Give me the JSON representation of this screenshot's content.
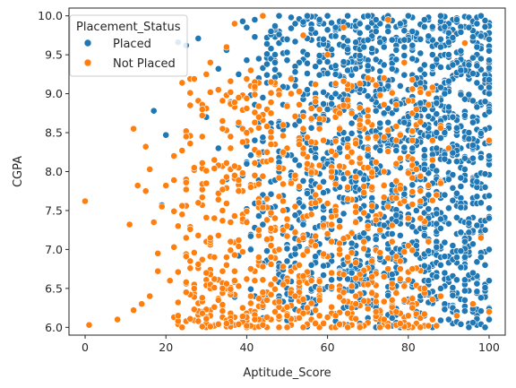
{
  "chart_data": {
    "type": "scatter",
    "xlabel": "Aptitude_Score",
    "ylabel": "CGPA",
    "xlim": [
      -4,
      104
    ],
    "ylim": [
      5.9,
      10.1
    ],
    "xticks": [
      "0",
      "20",
      "40",
      "60",
      "80",
      "100"
    ],
    "xtick_values": [
      0,
      20,
      40,
      60,
      80,
      100
    ],
    "yticks": [
      "6.0",
      "6.5",
      "7.0",
      "7.5",
      "8.0",
      "8.5",
      "9.0",
      "9.5",
      "10.0"
    ],
    "ytick_values": [
      6.0,
      6.5,
      7.0,
      7.5,
      8.0,
      8.5,
      9.0,
      9.5,
      10.0
    ],
    "grid": false,
    "legend": {
      "title": "Placement_Status",
      "placement": "top-left"
    },
    "series": [
      {
        "name": "Placed",
        "color": "#1f77b4",
        "density_note": "dense cloud, mostly Aptitude 45-100, CGPA 6.5-10",
        "points": [
          [
            17,
            8.78
          ],
          [
            19,
            7.57
          ],
          [
            20,
            8.47
          ],
          [
            23,
            9.66
          ],
          [
            25,
            9.62
          ],
          [
            28,
            9.71
          ],
          [
            33,
            9.32
          ],
          [
            35,
            9.56
          ],
          [
            38,
            9.25
          ],
          [
            40,
            9.85
          ],
          [
            42,
            9.95
          ],
          [
            44,
            10.0
          ],
          [
            46,
            9.8
          ],
          [
            48,
            10.0
          ],
          [
            50,
            9.7
          ],
          [
            52,
            9.9
          ],
          [
            55,
            10.0
          ],
          [
            58,
            9.95
          ],
          [
            60,
            10.0
          ],
          [
            62,
            9.85
          ],
          [
            65,
            10.0
          ],
          [
            68,
            9.9
          ],
          [
            70,
            10.0
          ],
          [
            72,
            9.95
          ],
          [
            75,
            10.0
          ],
          [
            78,
            9.9
          ],
          [
            80,
            10.0
          ],
          [
            84,
            9.95
          ],
          [
            88,
            10.0
          ],
          [
            92,
            9.95
          ],
          [
            95,
            9.85
          ],
          [
            98,
            10.0
          ],
          [
            100,
            9.7
          ],
          [
            30,
            8.7
          ],
          [
            33,
            8.3
          ],
          [
            35,
            7.9
          ],
          [
            36,
            8.9
          ],
          [
            38,
            8.6
          ],
          [
            39,
            7.4
          ],
          [
            40,
            8.1
          ],
          [
            41,
            7.0
          ],
          [
            42,
            8.4
          ],
          [
            43,
            9.2
          ],
          [
            44,
            7.7
          ],
          [
            45,
            8.8
          ],
          [
            46,
            6.9
          ],
          [
            47,
            9.4
          ],
          [
            48,
            8.0
          ],
          [
            49,
            7.2
          ],
          [
            50,
            8.6
          ],
          [
            51,
            6.4
          ],
          [
            52,
            9.1
          ],
          [
            53,
            7.6
          ],
          [
            54,
            8.3
          ],
          [
            55,
            9.5
          ],
          [
            56,
            6.8
          ],
          [
            57,
            8.9
          ],
          [
            58,
            7.3
          ],
          [
            59,
            9.7
          ],
          [
            60,
            8.1
          ],
          [
            61,
            6.5
          ],
          [
            62,
            9.0
          ],
          [
            63,
            7.8
          ],
          [
            64,
            8.5
          ],
          [
            65,
            9.3
          ],
          [
            66,
            7.0
          ],
          [
            67,
            8.7
          ],
          [
            68,
            6.3
          ],
          [
            69,
            9.6
          ],
          [
            70,
            8.2
          ],
          [
            71,
            7.5
          ],
          [
            72,
            9.8
          ],
          [
            73,
            6.9
          ],
          [
            74,
            8.4
          ],
          [
            75,
            9.1
          ],
          [
            76,
            7.2
          ],
          [
            77,
            8.8
          ],
          [
            78,
            6.6
          ],
          [
            79,
            9.4
          ],
          [
            80,
            8.0
          ],
          [
            81,
            7.7
          ],
          [
            82,
            9.2
          ],
          [
            83,
            6.4
          ],
          [
            84,
            8.6
          ],
          [
            85,
            7.4
          ],
          [
            86,
            9.5
          ],
          [
            87,
            8.3
          ],
          [
            88,
            6.8
          ],
          [
            89,
            9.0
          ],
          [
            90,
            7.9
          ],
          [
            91,
            8.7
          ],
          [
            92,
            6.2
          ],
          [
            93,
            9.3
          ],
          [
            94,
            7.1
          ],
          [
            95,
            8.5
          ],
          [
            96,
            6.7
          ],
          [
            97,
            9.6
          ],
          [
            98,
            7.6
          ],
          [
            99,
            8.9
          ],
          [
            100,
            8.2
          ],
          [
            100,
            7.4
          ],
          [
            100,
            6.6
          ],
          [
            100,
            9.0
          ],
          [
            100,
            6.1
          ],
          [
            99,
            6.0
          ],
          [
            95,
            6.0
          ],
          [
            90,
            6.1
          ],
          [
            86,
            6.0
          ],
          [
            82,
            6.2
          ],
          [
            78,
            6.0
          ],
          [
            74,
            6.1
          ]
        ]
      },
      {
        "name": "Not Placed",
        "color": "#ff7f0e",
        "density_note": "mostly Aptitude 25-80, CGPA 6.0-8.5",
        "points": [
          [
            0,
            7.62
          ],
          [
            1,
            6.03
          ],
          [
            8,
            6.1
          ],
          [
            11,
            7.32
          ],
          [
            12,
            8.55
          ],
          [
            12,
            6.22
          ],
          [
            13,
            7.82
          ],
          [
            14,
            6.3
          ],
          [
            15,
            8.32
          ],
          [
            15,
            7.75
          ],
          [
            16,
            6.4
          ],
          [
            16,
            8.03
          ],
          [
            17,
            7.35
          ],
          [
            18,
            6.72
          ],
          [
            18,
            6.95
          ],
          [
            19,
            7.55
          ],
          [
            20,
            7.82
          ],
          [
            21,
            6.6
          ],
          [
            22,
            7.03
          ],
          [
            22,
            8.2
          ],
          [
            23,
            6.32
          ],
          [
            24,
            7.45
          ],
          [
            24,
            6.0
          ],
          [
            25,
            8.45
          ],
          [
            25,
            7.15
          ],
          [
            26,
            6.85
          ],
          [
            27,
            8.05
          ],
          [
            27,
            6.5
          ],
          [
            28,
            7.6
          ],
          [
            29,
            8.8
          ],
          [
            29,
            6.18
          ],
          [
            30,
            9.25
          ],
          [
            30,
            7.85
          ],
          [
            30,
            6.7
          ],
          [
            31,
            9.4
          ],
          [
            32,
            8.15
          ],
          [
            32,
            6.9
          ],
          [
            33,
            9.05
          ],
          [
            33,
            6.35
          ],
          [
            34,
            7.5
          ],
          [
            34,
            8.55
          ],
          [
            35,
            9.6
          ],
          [
            35,
            6.05
          ],
          [
            36,
            7.1
          ],
          [
            36,
            8.3
          ],
          [
            37,
            9.9
          ],
          [
            37,
            6.6
          ],
          [
            38,
            7.75
          ],
          [
            38,
            8.95
          ],
          [
            39,
            6.25
          ],
          [
            40,
            7.35
          ],
          [
            40,
            8.5
          ],
          [
            41,
            6.75
          ],
          [
            41,
            9.3
          ],
          [
            42,
            7.95
          ],
          [
            42,
            6.1
          ],
          [
            43,
            8.7
          ],
          [
            43,
            7.25
          ],
          [
            44,
            10.0
          ],
          [
            44,
            6.45
          ],
          [
            45,
            7.65
          ],
          [
            45,
            8.25
          ],
          [
            46,
            6.9
          ],
          [
            46,
            9.15
          ],
          [
            47,
            7.4
          ],
          [
            47,
            6.2
          ],
          [
            48,
            8.05
          ],
          [
            48,
            7.0
          ],
          [
            49,
            6.55
          ],
          [
            49,
            8.6
          ],
          [
            50,
            7.3
          ],
          [
            50,
            6.0
          ],
          [
            51,
            7.85
          ],
          [
            51,
            9.0
          ],
          [
            52,
            6.4
          ],
          [
            52,
            7.55
          ],
          [
            53,
            8.35
          ],
          [
            53,
            6.8
          ],
          [
            54,
            7.15
          ],
          [
            54,
            9.75
          ],
          [
            55,
            6.25
          ],
          [
            55,
            8.1
          ],
          [
            56,
            7.45
          ],
          [
            56,
            6.6
          ],
          [
            57,
            8.9
          ],
          [
            57,
            7.05
          ],
          [
            58,
            6.35
          ],
          [
            58,
            7.8
          ],
          [
            59,
            8.4
          ],
          [
            59,
            6.05
          ],
          [
            60,
            7.2
          ],
          [
            60,
            9.5
          ],
          [
            61,
            6.7
          ],
          [
            61,
            8.0
          ],
          [
            62,
            7.5
          ],
          [
            62,
            6.15
          ],
          [
            63,
            8.75
          ],
          [
            63,
            7.0
          ],
          [
            64,
            6.45
          ],
          [
            64,
            9.85
          ],
          [
            65,
            7.65
          ],
          [
            65,
            6.9
          ],
          [
            66,
            8.25
          ],
          [
            67,
            6.3
          ],
          [
            67,
            7.35
          ],
          [
            68,
            8.6
          ],
          [
            68,
            6.0
          ],
          [
            69,
            7.1
          ],
          [
            70,
            6.55
          ],
          [
            70,
            9.2
          ],
          [
            71,
            7.8
          ],
          [
            72,
            6.2
          ],
          [
            72,
            8.45
          ],
          [
            73,
            7.25
          ],
          [
            74,
            6.65
          ],
          [
            75,
            9.95
          ],
          [
            75,
            7.55
          ],
          [
            76,
            6.35
          ],
          [
            77,
            8.1
          ],
          [
            78,
            6.85
          ],
          [
            79,
            9.4
          ],
          [
            80,
            7.05
          ],
          [
            81,
            6.25
          ],
          [
            82,
            8.8
          ],
          [
            83,
            7.4
          ],
          [
            84,
            6.5
          ],
          [
            85,
            9.0
          ],
          [
            86,
            6.1
          ],
          [
            87,
            7.7
          ],
          [
            88,
            6.4
          ],
          [
            90,
            8.3
          ],
          [
            92,
            6.15
          ],
          [
            94,
            9.65
          ],
          [
            96,
            6.3
          ],
          [
            98,
            7.15
          ],
          [
            100,
            8.4
          ],
          [
            100,
            6.2
          ]
        ]
      }
    ]
  }
}
